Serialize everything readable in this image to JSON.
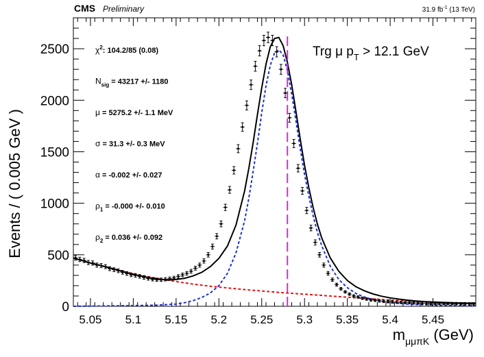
{
  "header": {
    "experiment": "CMS",
    "status": "Preliminary",
    "lumi": "31.9 fb",
    "lumi_exp": "-1",
    "energy": " (13 TeV)"
  },
  "annotation": {
    "prefix": "Trg μ p",
    "sub": "T",
    "suffix": " > 12.1 GeV"
  },
  "fit_params": [
    {
      "sym": "χ",
      "sup": "2",
      "sub": "",
      "text": ": 104.2/85 (0.08)"
    },
    {
      "sym": "N",
      "sup": "",
      "sub": "sig",
      "text": " = 43217 +/- 1180"
    },
    {
      "sym": "μ",
      "sup": "",
      "sub": "",
      "text": " = 5275.2 +/- 1.1 MeV"
    },
    {
      "sym": "σ",
      "sup": "",
      "sub": "",
      "text": " = 31.3 +/- 0.3 MeV"
    },
    {
      "sym": "α",
      "sup": "",
      "sub": "",
      "text": " = -0.002 +/- 0.027"
    },
    {
      "sym": "ρ",
      "sup": "",
      "sub": "1",
      "text": " = -0.000 +/- 0.010"
    },
    {
      "sym": "ρ",
      "sup": "",
      "sub": "2",
      "text": " = 0.036 +/- 0.092"
    }
  ],
  "colors": {
    "data": "#000000",
    "total_fit": "#000000",
    "signal": "#1a2fd6",
    "background": "#e81010",
    "marker_line": "#e020e0"
  },
  "chart_data": {
    "type": "scatter",
    "xlabel": "m",
    "xlabel_sub": "μμπK",
    "xlabel_unit": " (GeV)",
    "ylabel": "Events / ( 0.005 GeV )",
    "xlim": [
      5.03,
      5.5
    ],
    "ylim": [
      0,
      2800
    ],
    "x_ticks": [
      5.05,
      5.1,
      5.15,
      5.2,
      5.25,
      5.3,
      5.35,
      5.4,
      5.45
    ],
    "x_tick_labels": [
      "5.05",
      "5.1",
      "5.15",
      "5.2",
      "5.25",
      "5.3",
      "5.35",
      "5.4",
      "5.45"
    ],
    "y_ticks": [
      0,
      500,
      1000,
      1500,
      2000,
      2500
    ],
    "y_tick_labels": [
      "0",
      "500",
      "1000",
      "1500",
      "2000",
      "2500"
    ],
    "vertical_line_x": 5.28,
    "series": [
      {
        "style": "points",
        "x": [
          5.0325,
          5.0375,
          5.0425,
          5.0475,
          5.0525,
          5.0575,
          5.0625,
          5.0675,
          5.0725,
          5.0775,
          5.0825,
          5.0875,
          5.0925,
          5.0975,
          5.1025,
          5.1075,
          5.1125,
          5.1175,
          5.1225,
          5.1275,
          5.1325,
          5.1375,
          5.1425,
          5.1475,
          5.1525,
          5.1575,
          5.1625,
          5.1675,
          5.1725,
          5.1775,
          5.1825,
          5.1875,
          5.1925,
          5.1975,
          5.2025,
          5.2075,
          5.2125,
          5.2175,
          5.2225,
          5.2275,
          5.2325,
          5.2375,
          5.2425,
          5.2475,
          5.2525,
          5.2575,
          5.2625,
          5.2675,
          5.2725,
          5.2775,
          5.2825,
          5.2875,
          5.2925,
          5.2975,
          5.3025,
          5.3075,
          5.3125,
          5.3175,
          5.3225,
          5.3275,
          5.3325,
          5.3375,
          5.3425,
          5.3475,
          5.3525,
          5.3575,
          5.3625,
          5.3675,
          5.3725,
          5.3775,
          5.3825,
          5.3875,
          5.3925,
          5.3975,
          5.4025,
          5.4075,
          5.4125,
          5.4175,
          5.4225,
          5.4275,
          5.4325,
          5.4375,
          5.4425,
          5.4475,
          5.4525,
          5.4575,
          5.4625,
          5.4675,
          5.4725,
          5.4775,
          5.4825,
          5.4875,
          5.4925,
          5.4975
        ],
        "y": [
          470,
          455,
          445,
          425,
          420,
          400,
          395,
          385,
          365,
          355,
          345,
          330,
          318,
          305,
          300,
          290,
          280,
          270,
          262,
          258,
          258,
          262,
          268,
          275,
          290,
          305,
          320,
          340,
          370,
          400,
          440,
          500,
          580,
          680,
          800,
          960,
          1130,
          1320,
          1530,
          1740,
          1950,
          2150,
          2330,
          2480,
          2580,
          2610,
          2580,
          2470,
          2300,
          2070,
          1830,
          1580,
          1340,
          1120,
          930,
          760,
          620,
          500,
          400,
          320,
          258,
          210,
          170,
          140,
          118,
          100,
          90,
          78,
          70,
          62,
          58,
          52,
          48,
          45,
          42,
          40,
          38,
          36,
          35,
          33,
          32,
          30,
          30,
          29,
          28,
          28,
          27,
          27,
          26,
          26,
          25,
          25,
          24,
          24
        ],
        "yerr_frac": 0.025,
        "yerr_min": 12
      },
      {
        "style": "total-fit",
        "x": [
          5.03,
          5.04,
          5.05,
          5.06,
          5.07,
          5.08,
          5.09,
          5.1,
          5.11,
          5.12,
          5.13,
          5.14,
          5.15,
          5.16,
          5.17,
          5.18,
          5.19,
          5.2,
          5.21,
          5.22,
          5.23,
          5.235,
          5.24,
          5.245,
          5.25,
          5.255,
          5.26,
          5.265,
          5.27,
          5.275,
          5.28,
          5.285,
          5.29,
          5.295,
          5.3,
          5.305,
          5.31,
          5.315,
          5.32,
          5.33,
          5.34,
          5.35,
          5.36,
          5.37,
          5.38,
          5.39,
          5.4,
          5.41,
          5.42,
          5.43,
          5.44,
          5.45,
          5.46,
          5.47,
          5.48,
          5.49,
          5.5
        ],
        "y": [
          468,
          445,
          420,
          400,
          378,
          355,
          332,
          310,
          292,
          275,
          262,
          256,
          260,
          272,
          295,
          330,
          385,
          465,
          585,
          790,
          1120,
          1340,
          1590,
          1860,
          2120,
          2350,
          2520,
          2600,
          2610,
          2530,
          2370,
          2150,
          1890,
          1620,
          1370,
          1150,
          960,
          800,
          665,
          470,
          340,
          250,
          190,
          150,
          120,
          98,
          82,
          70,
          60,
          52,
          46,
          42,
          38,
          35,
          32,
          30,
          28
        ]
      },
      {
        "style": "signal",
        "x": [
          5.03,
          5.05,
          5.07,
          5.09,
          5.11,
          5.13,
          5.15,
          5.16,
          5.17,
          5.18,
          5.19,
          5.2,
          5.21,
          5.22,
          5.23,
          5.235,
          5.24,
          5.245,
          5.25,
          5.255,
          5.26,
          5.265,
          5.27,
          5.275,
          5.28,
          5.285,
          5.29,
          5.295,
          5.3,
          5.305,
          5.31,
          5.315,
          5.32,
          5.33,
          5.34,
          5.35,
          5.36,
          5.37,
          5.38,
          5.39,
          5.4,
          5.41,
          5.42,
          5.43,
          5.44,
          5.45,
          5.46,
          5.47,
          5.48,
          5.49,
          5.5
        ],
        "y": [
          0,
          2,
          4,
          6,
          8,
          12,
          22,
          35,
          55,
          85,
          130,
          200,
          320,
          520,
          830,
          1050,
          1310,
          1580,
          1880,
          2140,
          2340,
          2460,
          2490,
          2440,
          2290,
          2060,
          1800,
          1530,
          1280,
          1070,
          880,
          720,
          590,
          390,
          260,
          180,
          125,
          90,
          65,
          48,
          36,
          28,
          22,
          17,
          14,
          11,
          9,
          8,
          6,
          5,
          4
        ]
      },
      {
        "style": "background",
        "x": [
          5.03,
          5.05,
          5.07,
          5.09,
          5.11,
          5.13,
          5.15,
          5.17,
          5.19,
          5.21,
          5.23,
          5.25,
          5.27,
          5.29,
          5.31,
          5.33,
          5.35,
          5.37,
          5.39,
          5.41,
          5.43,
          5.45,
          5.47,
          5.49,
          5.5
        ],
        "y": [
          468,
          420,
          378,
          335,
          300,
          268,
          240,
          215,
          195,
          178,
          162,
          148,
          135,
          123,
          112,
          100,
          88,
          77,
          66,
          56,
          48,
          40,
          34,
          28,
          26
        ]
      }
    ]
  }
}
